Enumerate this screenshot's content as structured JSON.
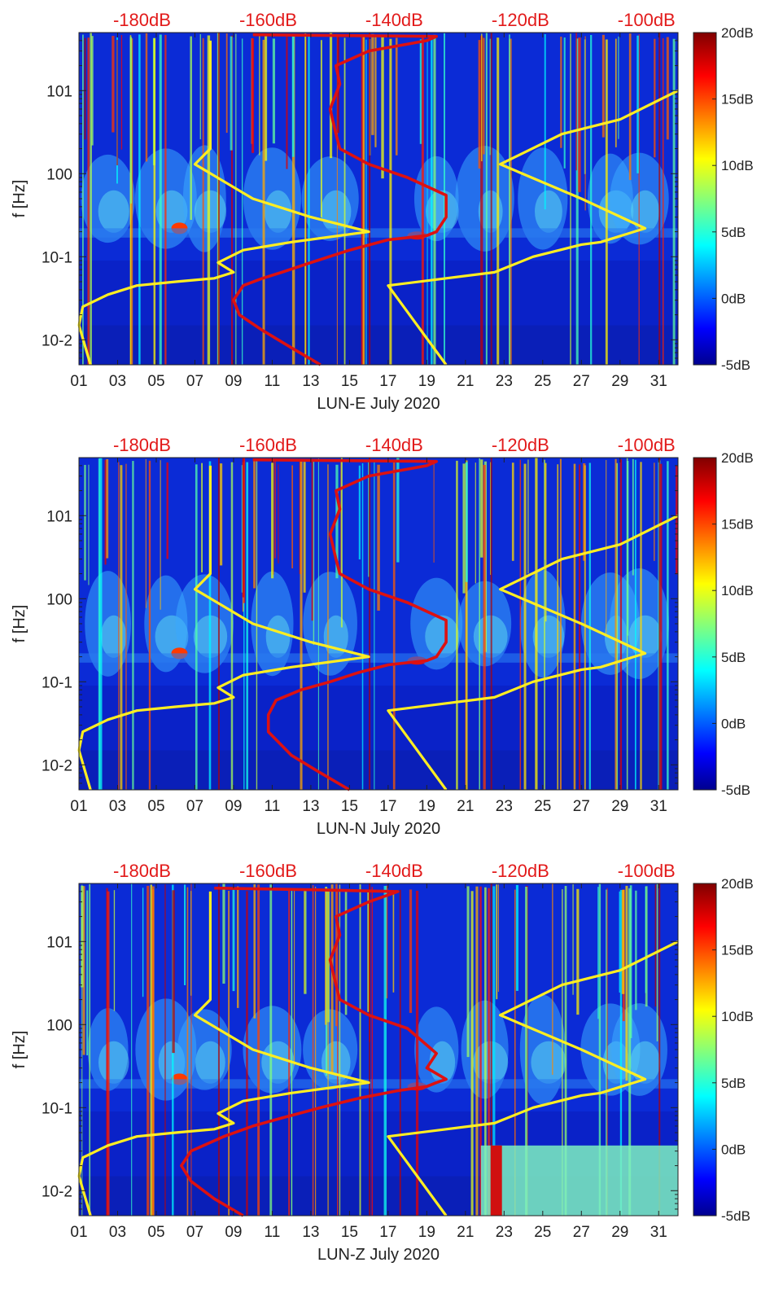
{
  "chart_data": [
    {
      "type": "heatmap",
      "xlabel": "LUN-E July 2020",
      "ylabel": "f [Hz]",
      "xlim": [
        1,
        32
      ],
      "ylim": [
        0.005,
        50
      ],
      "yscale": "log",
      "x_ticks": [
        "01",
        "03",
        "05",
        "07",
        "09",
        "11",
        "13",
        "15",
        "17",
        "19",
        "21",
        "23",
        "25",
        "27",
        "29",
        "31"
      ],
      "y_ticks": [
        "10-2",
        "10-1",
        "100",
        "101"
      ],
      "top_axis_ticks": [
        "-180dB",
        "-160dB",
        "-140dB",
        "-120dB",
        "-100dB"
      ],
      "top_axis_range_dB": [
        -190,
        -95
      ],
      "colorbar": {
        "ticks": [
          "-5dB",
          "0dB",
          "5dB",
          "10dB",
          "15dB",
          "20dB"
        ],
        "range": [
          -5,
          20
        ]
      },
      "series": [
        {
          "color": "#ffee22",
          "points": [
            [
              1.6,
              0.005
            ],
            [
              1,
              0.015
            ],
            [
              1.2,
              0.025
            ],
            [
              2.5,
              0.035
            ],
            [
              4,
              0.045
            ],
            [
              6,
              0.05
            ],
            [
              8,
              0.055
            ],
            [
              9,
              0.065
            ],
            [
              8.2,
              0.085
            ],
            [
              9.5,
              0.12
            ],
            [
              12,
              0.15
            ],
            [
              16,
              0.2
            ],
            [
              13,
              0.3
            ],
            [
              10,
              0.5
            ],
            [
              7,
              1.3
            ],
            [
              7.8,
              2
            ],
            [
              7.8,
              5
            ],
            [
              7.8,
              15
            ],
            [
              7.8,
              40
            ]
          ]
        },
        {
          "color": "#ffee22",
          "points": [
            [
              20,
              0.005
            ],
            [
              18.5,
              0.015
            ],
            [
              17,
              0.045
            ],
            [
              20,
              0.055
            ],
            [
              22.5,
              0.065
            ],
            [
              24.5,
              0.1
            ],
            [
              27,
              0.14
            ],
            [
              28,
              0.15
            ],
            [
              30.3,
              0.22
            ],
            [
              27,
              0.5
            ],
            [
              22.8,
              1.3
            ],
            [
              26,
              3
            ],
            [
              29,
              4.5
            ],
            [
              32,
              10
            ]
          ]
        },
        {
          "color": "#dd1111",
          "points": [
            [
              13.5,
              0.005
            ],
            [
              12,
              0.008
            ],
            [
              10.5,
              0.013
            ],
            [
              9.3,
              0.02
            ],
            [
              9,
              0.03
            ],
            [
              9.5,
              0.045
            ],
            [
              10.5,
              0.055
            ],
            [
              11.5,
              0.065
            ],
            [
              13,
              0.085
            ],
            [
              15,
              0.12
            ],
            [
              17,
              0.16
            ],
            [
              19,
              0.18
            ],
            [
              19.5,
              0.2
            ],
            [
              20,
              0.3
            ],
            [
              20,
              0.55
            ],
            [
              18,
              0.9
            ],
            [
              16,
              1.3
            ],
            [
              14.5,
              2
            ],
            [
              14.3,
              3
            ],
            [
              14,
              6
            ],
            [
              14.5,
              12
            ],
            [
              14.3,
              20
            ],
            [
              16,
              30
            ],
            [
              19,
              40
            ],
            [
              19.5,
              45
            ],
            [
              10,
              47
            ]
          ]
        }
      ]
    },
    {
      "type": "heatmap",
      "xlabel": "LUN-N July 2020",
      "ylabel": "f [Hz]",
      "xlim": [
        1,
        32
      ],
      "ylim": [
        0.005,
        50
      ],
      "yscale": "log",
      "x_ticks": [
        "01",
        "03",
        "05",
        "07",
        "09",
        "11",
        "13",
        "15",
        "17",
        "19",
        "21",
        "23",
        "25",
        "27",
        "29",
        "31"
      ],
      "y_ticks": [
        "10-2",
        "10-1",
        "100",
        "101"
      ],
      "top_axis_ticks": [
        "-180dB",
        "-160dB",
        "-140dB",
        "-120dB",
        "-100dB"
      ],
      "top_axis_range_dB": [
        -190,
        -95
      ],
      "colorbar": {
        "ticks": [
          "-5dB",
          "0dB",
          "5dB",
          "10dB",
          "15dB",
          "20dB"
        ],
        "range": [
          -5,
          20
        ]
      },
      "series": [
        {
          "color": "#ffee22",
          "points": [
            [
              1.6,
              0.005
            ],
            [
              1,
              0.015
            ],
            [
              1.2,
              0.025
            ],
            [
              2.5,
              0.035
            ],
            [
              4,
              0.045
            ],
            [
              6,
              0.05
            ],
            [
              8,
              0.055
            ],
            [
              9,
              0.065
            ],
            [
              8.2,
              0.085
            ],
            [
              9.5,
              0.12
            ],
            [
              12,
              0.15
            ],
            [
              16,
              0.2
            ],
            [
              13,
              0.3
            ],
            [
              10,
              0.5
            ],
            [
              7,
              1.3
            ],
            [
              7.8,
              2
            ],
            [
              7.8,
              5
            ],
            [
              7.8,
              15
            ],
            [
              7.8,
              40
            ]
          ]
        },
        {
          "color": "#ffee22",
          "points": [
            [
              20,
              0.005
            ],
            [
              18.5,
              0.015
            ],
            [
              17,
              0.045
            ],
            [
              20,
              0.055
            ],
            [
              22.5,
              0.065
            ],
            [
              24.5,
              0.1
            ],
            [
              27,
              0.14
            ],
            [
              28,
              0.15
            ],
            [
              30.3,
              0.22
            ],
            [
              27,
              0.5
            ],
            [
              22.8,
              1.3
            ],
            [
              26,
              3
            ],
            [
              29,
              4.5
            ],
            [
              32,
              10
            ]
          ]
        },
        {
          "color": "#dd1111",
          "points": [
            [
              15,
              0.005
            ],
            [
              13.5,
              0.008
            ],
            [
              12,
              0.013
            ],
            [
              10.8,
              0.025
            ],
            [
              10.8,
              0.04
            ],
            [
              11.2,
              0.06
            ],
            [
              12.5,
              0.08
            ],
            [
              14,
              0.1
            ],
            [
              15.5,
              0.13
            ],
            [
              17,
              0.16
            ],
            [
              19,
              0.18
            ],
            [
              19.5,
              0.2
            ],
            [
              20,
              0.3
            ],
            [
              20,
              0.55
            ],
            [
              18,
              0.9
            ],
            [
              16,
              1.3
            ],
            [
              14.5,
              2
            ],
            [
              14.3,
              3
            ],
            [
              14,
              6
            ],
            [
              14.5,
              12
            ],
            [
              14.3,
              20
            ],
            [
              16,
              30
            ],
            [
              19,
              40
            ],
            [
              19.5,
              45
            ],
            [
              10,
              47
            ]
          ]
        }
      ]
    },
    {
      "type": "heatmap",
      "xlabel": "LUN-Z July 2020",
      "ylabel": "f [Hz]",
      "xlim": [
        1,
        32
      ],
      "ylim": [
        0.005,
        50
      ],
      "yscale": "log",
      "x_ticks": [
        "01",
        "03",
        "05",
        "07",
        "09",
        "11",
        "13",
        "15",
        "17",
        "19",
        "21",
        "23",
        "25",
        "27",
        "29",
        "31"
      ],
      "y_ticks": [
        "10-2",
        "10-1",
        "100",
        "101"
      ],
      "top_axis_ticks": [
        "-180dB",
        "-160dB",
        "-140dB",
        "-120dB",
        "-100dB"
      ],
      "top_axis_range_dB": [
        -190,
        -95
      ],
      "colorbar": {
        "ticks": [
          "-5dB",
          "0dB",
          "5dB",
          "10dB",
          "15dB",
          "20dB"
        ],
        "range": [
          -5,
          20
        ]
      },
      "series": [
        {
          "color": "#ffee22",
          "points": [
            [
              1.6,
              0.005
            ],
            [
              1,
              0.015
            ],
            [
              1.2,
              0.025
            ],
            [
              2.5,
              0.035
            ],
            [
              4,
              0.045
            ],
            [
              6,
              0.05
            ],
            [
              8,
              0.055
            ],
            [
              9,
              0.065
            ],
            [
              8.2,
              0.085
            ],
            [
              9.5,
              0.12
            ],
            [
              12,
              0.15
            ],
            [
              16,
              0.2
            ],
            [
              13,
              0.3
            ],
            [
              10,
              0.5
            ],
            [
              7,
              1.3
            ],
            [
              7.8,
              2
            ],
            [
              7.8,
              5
            ],
            [
              7.8,
              15
            ],
            [
              7.8,
              40
            ]
          ]
        },
        {
          "color": "#ffee22",
          "points": [
            [
              20,
              0.005
            ],
            [
              18.5,
              0.015
            ],
            [
              17,
              0.045
            ],
            [
              20,
              0.055
            ],
            [
              22.5,
              0.065
            ],
            [
              24.5,
              0.1
            ],
            [
              27,
              0.14
            ],
            [
              28,
              0.15
            ],
            [
              30.3,
              0.22
            ],
            [
              27,
              0.5
            ],
            [
              22.8,
              1.3
            ],
            [
              26,
              3
            ],
            [
              29,
              4.5
            ],
            [
              32,
              10
            ]
          ]
        },
        {
          "color": "#dd1111",
          "points": [
            [
              9.5,
              0.005
            ],
            [
              8,
              0.008
            ],
            [
              6.8,
              0.013
            ],
            [
              6.3,
              0.02
            ],
            [
              6.8,
              0.03
            ],
            [
              8.5,
              0.045
            ],
            [
              10,
              0.06
            ],
            [
              11.5,
              0.075
            ],
            [
              13.5,
              0.1
            ],
            [
              15.5,
              0.13
            ],
            [
              17.5,
              0.16
            ],
            [
              19,
              0.18
            ],
            [
              19.5,
              0.2
            ],
            [
              20,
              0.22
            ],
            [
              19,
              0.3
            ],
            [
              19.5,
              0.45
            ],
            [
              18,
              0.9
            ],
            [
              16,
              1.3
            ],
            [
              14.5,
              2
            ],
            [
              14.3,
              3
            ],
            [
              14,
              6
            ],
            [
              14.5,
              12
            ],
            [
              14.3,
              20
            ],
            [
              16,
              30
            ],
            [
              17.5,
              40
            ],
            [
              13,
              42
            ],
            [
              8,
              44
            ]
          ]
        }
      ]
    }
  ]
}
